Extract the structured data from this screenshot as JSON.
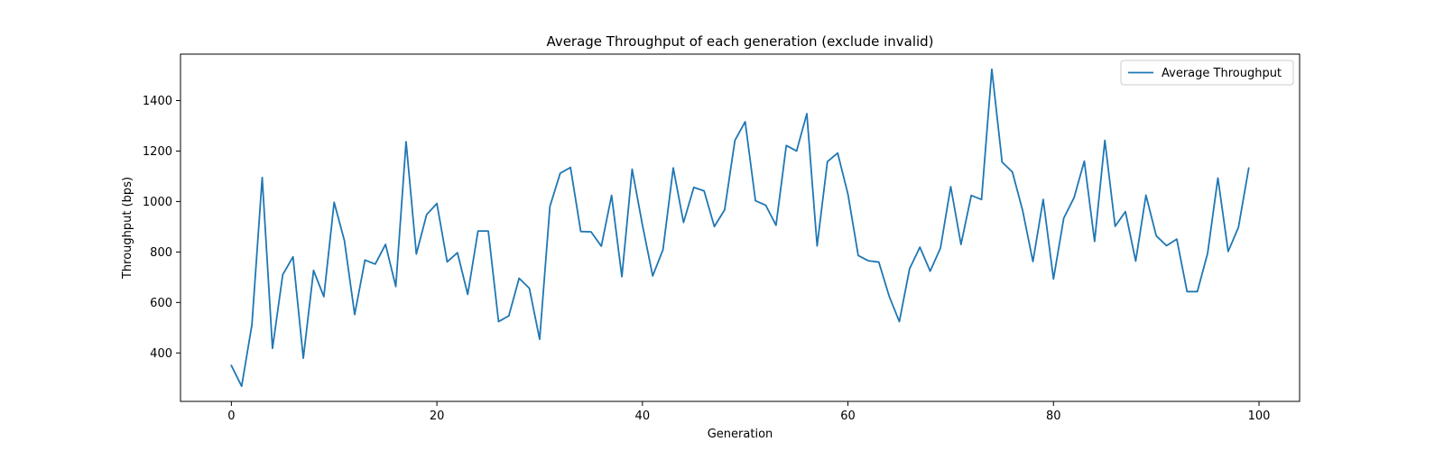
{
  "chart_data": {
    "type": "line",
    "title": "Average Throughput of each generation (exclude invalid)",
    "xlabel": "Generation",
    "ylabel": "Throughput (bps)",
    "xlim": [
      -4.95,
      103.95
    ],
    "ylim": [
      208,
      1584
    ],
    "xticks": [
      0,
      20,
      40,
      60,
      80,
      100
    ],
    "yticks": [
      400,
      600,
      800,
      1000,
      1200,
      1400
    ],
    "grid": false,
    "legend_position": "top-right",
    "series": [
      {
        "name": "Average Throughput",
        "color": "#1f77b4",
        "x": [
          0,
          1,
          2,
          3,
          4,
          5,
          6,
          7,
          8,
          9,
          10,
          11,
          12,
          13,
          14,
          15,
          16,
          17,
          18,
          19,
          20,
          21,
          22,
          23,
          24,
          25,
          26,
          27,
          28,
          29,
          30,
          31,
          32,
          33,
          34,
          35,
          36,
          37,
          38,
          39,
          40,
          41,
          42,
          43,
          44,
          45,
          46,
          47,
          48,
          49,
          50,
          51,
          52,
          53,
          54,
          55,
          56,
          57,
          58,
          59,
          60,
          61,
          62,
          63,
          64,
          65,
          66,
          67,
          68,
          69,
          70,
          71,
          72,
          73,
          74,
          75,
          76,
          77,
          78,
          79,
          80,
          81,
          82,
          83,
          84,
          85,
          86,
          87,
          88,
          89,
          90,
          91,
          92,
          93,
          94,
          95,
          96,
          97,
          98,
          99
        ],
        "values": [
          350,
          268,
          512,
          1095,
          418,
          710,
          781,
          379,
          727,
          623,
          997,
          845,
          552,
          768,
          752,
          830,
          663,
          1237,
          792,
          948,
          992,
          761,
          797,
          632,
          883,
          883,
          524,
          547,
          696,
          656,
          454,
          981,
          1112,
          1135,
          881,
          880,
          823,
          1024,
          702,
          1128,
          907,
          705,
          809,
          1133,
          917,
          1056,
          1042,
          901,
          967,
          1242,
          1316,
          1003,
          985,
          906,
          1222,
          1200,
          1348,
          824,
          1158,
          1192,
          1029,
          786,
          765,
          760,
          626,
          524,
          734,
          819,
          724,
          815,
          1059,
          830,
          1024,
          1008,
          1524,
          1156,
          1117,
          964,
          762,
          1008,
          693,
          934,
          1015,
          1160,
          842,
          1242,
          902,
          960,
          764,
          1025,
          864,
          825,
          851,
          643,
          643,
          795,
          1093,
          802,
          898,
          1132
        ]
      }
    ]
  }
}
